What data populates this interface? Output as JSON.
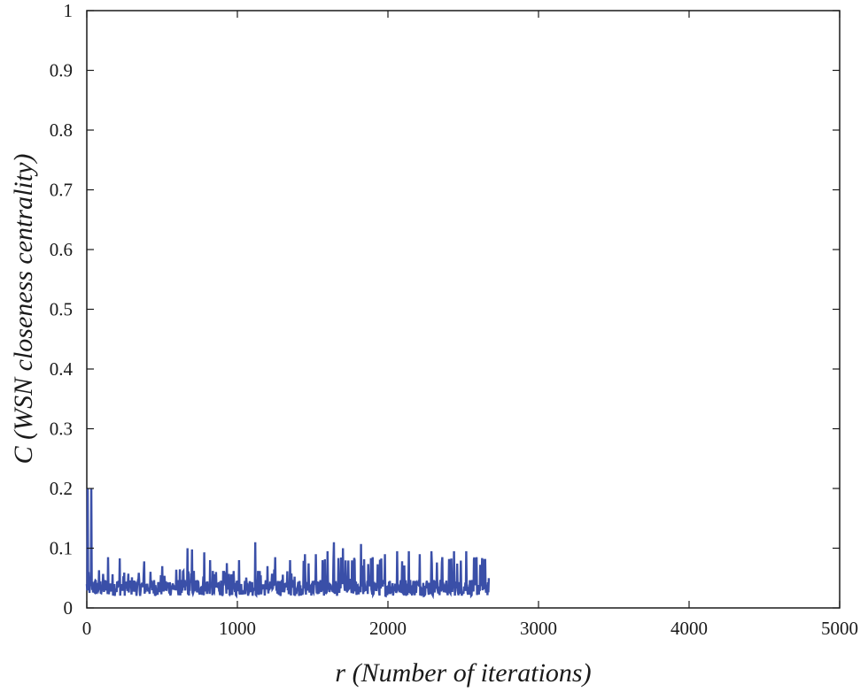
{
  "chart_data": {
    "type": "line",
    "title": "",
    "xlabel": "r (Number of iterations)",
    "ylabel": "C (WSN closeness centrality)",
    "xlim": [
      0,
      5000
    ],
    "ylim": [
      0,
      1
    ],
    "xticks": [
      0,
      1000,
      2000,
      3000,
      4000,
      5000
    ],
    "yticks": [
      0,
      0.1,
      0.2,
      0.3,
      0.4,
      0.5,
      0.6,
      0.7,
      0.8,
      0.9,
      1
    ],
    "grid": false,
    "legend": "none",
    "series": [
      {
        "color": "#3a4fa8",
        "x_start": 0,
        "x_end": 2670,
        "baseline": 0.03,
        "noise_range": [
          0.02,
          0.05
        ],
        "spikes": [
          {
            "x": 5,
            "y": 0.2
          },
          {
            "x": 30,
            "y": 0.2
          },
          {
            "x": 140,
            "y": 0.085
          },
          {
            "x": 220,
            "y": 0.083
          },
          {
            "x": 380,
            "y": 0.078
          },
          {
            "x": 500,
            "y": 0.07
          },
          {
            "x": 670,
            "y": 0.1
          },
          {
            "x": 700,
            "y": 0.098
          },
          {
            "x": 780,
            "y": 0.093
          },
          {
            "x": 820,
            "y": 0.08
          },
          {
            "x": 930,
            "y": 0.075
          },
          {
            "x": 1010,
            "y": 0.08
          },
          {
            "x": 1120,
            "y": 0.11
          },
          {
            "x": 1200,
            "y": 0.07
          },
          {
            "x": 1250,
            "y": 0.085
          },
          {
            "x": 1350,
            "y": 0.08
          },
          {
            "x": 1450,
            "y": 0.09
          },
          {
            "x": 1520,
            "y": 0.09
          },
          {
            "x": 1600,
            "y": 0.095
          },
          {
            "x": 1640,
            "y": 0.11
          },
          {
            "x": 1700,
            "y": 0.1
          },
          {
            "x": 1780,
            "y": 0.08
          },
          {
            "x": 1820,
            "y": 0.107
          },
          {
            "x": 1900,
            "y": 0.085
          },
          {
            "x": 1980,
            "y": 0.09
          },
          {
            "x": 2060,
            "y": 0.095
          },
          {
            "x": 2140,
            "y": 0.095
          },
          {
            "x": 2210,
            "y": 0.09
          },
          {
            "x": 2290,
            "y": 0.095
          },
          {
            "x": 2360,
            "y": 0.085
          },
          {
            "x": 2440,
            "y": 0.095
          },
          {
            "x": 2520,
            "y": 0.095
          },
          {
            "x": 2590,
            "y": 0.085
          },
          {
            "x": 2640,
            "y": 0.082
          },
          {
            "x": 2670,
            "y": 0.05
          }
        ]
      }
    ]
  }
}
